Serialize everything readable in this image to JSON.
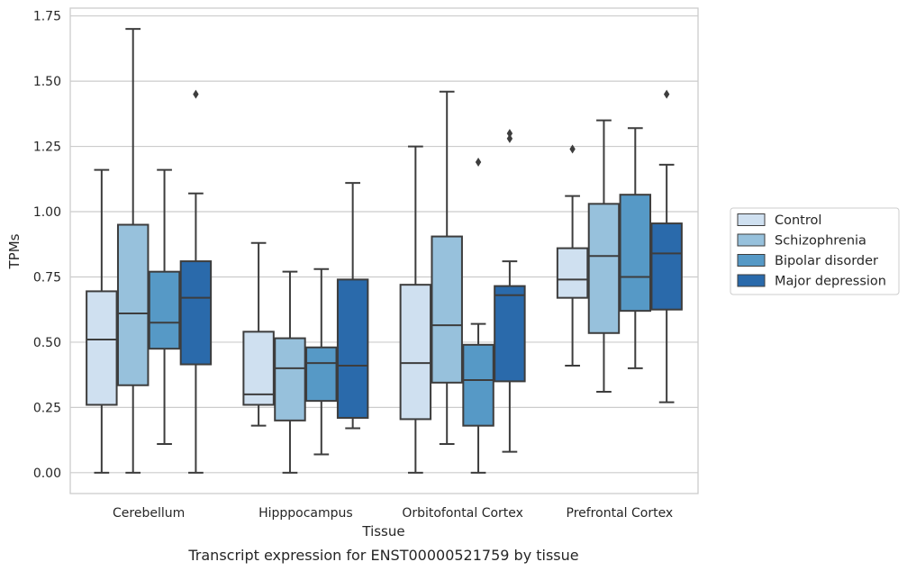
{
  "caption": "Transcript expression for ENST00000521759 by tissue",
  "chart_data": {
    "type": "box",
    "xlabel": "Tissue",
    "ylabel": "TPMs",
    "ylim": [
      -0.08,
      1.78
    ],
    "yticks": [
      0.0,
      0.25,
      0.5,
      0.75,
      1.0,
      1.25,
      1.5,
      1.75
    ],
    "ytick_labels": [
      "0.00",
      "0.25",
      "0.50",
      "0.75",
      "1.00",
      "1.25",
      "1.50",
      "1.75"
    ],
    "grid": "horizontal",
    "legend_position": "right",
    "categories": [
      "Cerebellum",
      "Hipppocampus",
      "Orbitofontal Cortex",
      "Prefrontal Cortex"
    ],
    "series": [
      {
        "name": "Control",
        "color": "#cfe0f0",
        "boxes": [
          {
            "whisker_low": 0.0,
            "q1": 0.26,
            "median": 0.51,
            "q3": 0.695,
            "whisker_high": 1.16,
            "outliers": []
          },
          {
            "whisker_low": 0.18,
            "q1": 0.26,
            "median": 0.3,
            "q3": 0.54,
            "whisker_high": 0.88,
            "outliers": []
          },
          {
            "whisker_low": 0.0,
            "q1": 0.205,
            "median": 0.42,
            "q3": 0.72,
            "whisker_high": 1.25,
            "outliers": []
          },
          {
            "whisker_low": 0.41,
            "q1": 0.67,
            "median": 0.74,
            "q3": 0.86,
            "whisker_high": 1.06,
            "outliers": [
              1.24
            ]
          }
        ]
      },
      {
        "name": "Schizophrenia",
        "color": "#97c1dc",
        "boxes": [
          {
            "whisker_low": 0.0,
            "q1": 0.335,
            "median": 0.61,
            "q3": 0.95,
            "whisker_high": 1.7,
            "outliers": []
          },
          {
            "whisker_low": 0.0,
            "q1": 0.2,
            "median": 0.4,
            "q3": 0.515,
            "whisker_high": 0.77,
            "outliers": []
          },
          {
            "whisker_low": 0.11,
            "q1": 0.345,
            "median": 0.565,
            "q3": 0.905,
            "whisker_high": 1.46,
            "outliers": []
          },
          {
            "whisker_low": 0.31,
            "q1": 0.535,
            "median": 0.83,
            "q3": 1.03,
            "whisker_high": 1.35,
            "outliers": []
          }
        ]
      },
      {
        "name": "Bipolar disorder",
        "color": "#5699c6",
        "boxes": [
          {
            "whisker_low": 0.11,
            "q1": 0.475,
            "median": 0.575,
            "q3": 0.77,
            "whisker_high": 1.16,
            "outliers": []
          },
          {
            "whisker_low": 0.07,
            "q1": 0.275,
            "median": 0.42,
            "q3": 0.48,
            "whisker_high": 0.78,
            "outliers": []
          },
          {
            "whisker_low": 0.0,
            "q1": 0.18,
            "median": 0.355,
            "q3": 0.49,
            "whisker_high": 0.57,
            "outliers": [
              1.19
            ]
          },
          {
            "whisker_low": 0.4,
            "q1": 0.62,
            "median": 0.75,
            "q3": 1.065,
            "whisker_high": 1.32,
            "outliers": []
          }
        ]
      },
      {
        "name": "Major depression",
        "color": "#2a6aab",
        "boxes": [
          {
            "whisker_low": 0.0,
            "q1": 0.415,
            "median": 0.67,
            "q3": 0.81,
            "whisker_high": 1.07,
            "outliers": [
              1.45
            ]
          },
          {
            "whisker_low": 0.17,
            "q1": 0.21,
            "median": 0.41,
            "q3": 0.74,
            "whisker_high": 1.11,
            "outliers": []
          },
          {
            "whisker_low": 0.08,
            "q1": 0.35,
            "median": 0.68,
            "q3": 0.715,
            "whisker_high": 0.81,
            "outliers": [
              1.28,
              1.3
            ]
          },
          {
            "whisker_low": 0.27,
            "q1": 0.625,
            "median": 0.84,
            "q3": 0.955,
            "whisker_high": 1.18,
            "outliers": [
              1.45
            ]
          }
        ]
      }
    ]
  }
}
